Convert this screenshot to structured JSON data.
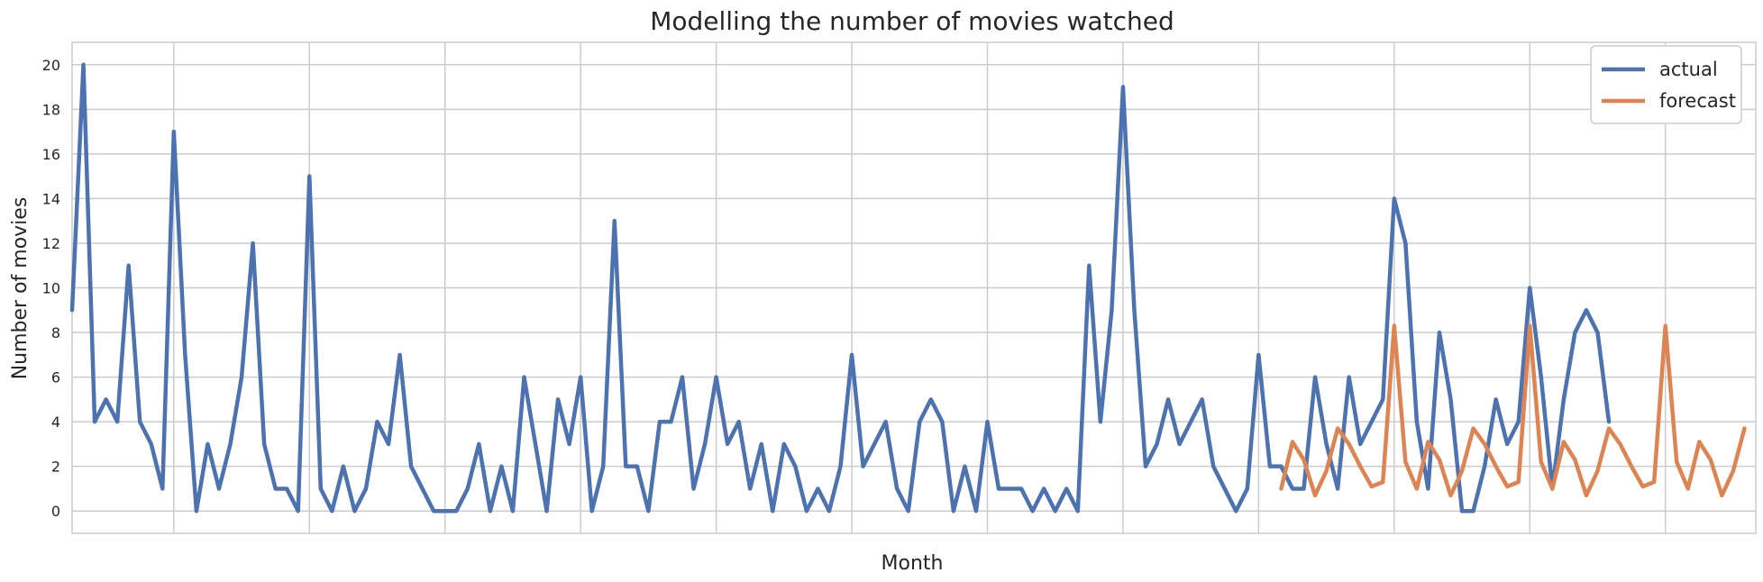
{
  "chart_data": {
    "type": "line",
    "title": "Modelling the number of movies watched",
    "xlabel": "Month",
    "ylabel": "Number of movies",
    "ylim": [
      -1,
      21
    ],
    "yticks": [
      0,
      2,
      4,
      6,
      8,
      10,
      12,
      14,
      16,
      18,
      20
    ],
    "xlim": [
      0,
      149
    ],
    "grid": true,
    "legend_position": "top-right",
    "series": [
      {
        "name": "actual",
        "color": "#4C72B0",
        "x_start": 0,
        "values": [
          9,
          20,
          4,
          5,
          4,
          11,
          4,
          3,
          1,
          17,
          7,
          0,
          3,
          1,
          3,
          6,
          12,
          3,
          1,
          1,
          0,
          15,
          1,
          0,
          2,
          0,
          1,
          4,
          3,
          7,
          2,
          1,
          0,
          0,
          0,
          1,
          3,
          0,
          2,
          0,
          6,
          3,
          0,
          5,
          3,
          6,
          0,
          2,
          13,
          2,
          2,
          0,
          4,
          4,
          6,
          1,
          3,
          6,
          3,
          4,
          1,
          3,
          0,
          3,
          2,
          0,
          1,
          0,
          2,
          7,
          2,
          3,
          4,
          1,
          0,
          4,
          5,
          4,
          0,
          2,
          0,
          4,
          1,
          1,
          1,
          0,
          1,
          0,
          1,
          0,
          11,
          4,
          9,
          19,
          9,
          2,
          3,
          5,
          3,
          4,
          5,
          2,
          1,
          0,
          1,
          7,
          2,
          2,
          1,
          1,
          6,
          3,
          1,
          6,
          3,
          4,
          5,
          14,
          12,
          4,
          1,
          8,
          5,
          0,
          0,
          2,
          5,
          3,
          4,
          10,
          6,
          1,
          5,
          8,
          9,
          8,
          4
        ]
      },
      {
        "name": "forecast",
        "color": "#DD8452",
        "x_start": 107,
        "values": [
          1,
          3.1,
          2.3,
          0.7,
          1.8,
          3.7,
          3,
          2,
          1.1,
          1.3,
          8.3,
          2.2,
          1,
          3.1,
          2.3,
          0.7,
          1.8,
          3.7,
          3,
          2,
          1.1,
          1.3,
          8.3,
          2.2,
          1,
          3.1,
          2.3,
          0.7,
          1.8,
          3.7,
          3,
          2,
          1.1,
          1.3,
          8.3,
          2.2,
          1,
          3.1,
          2.3,
          0.7,
          1.8,
          3.7
        ]
      }
    ]
  }
}
